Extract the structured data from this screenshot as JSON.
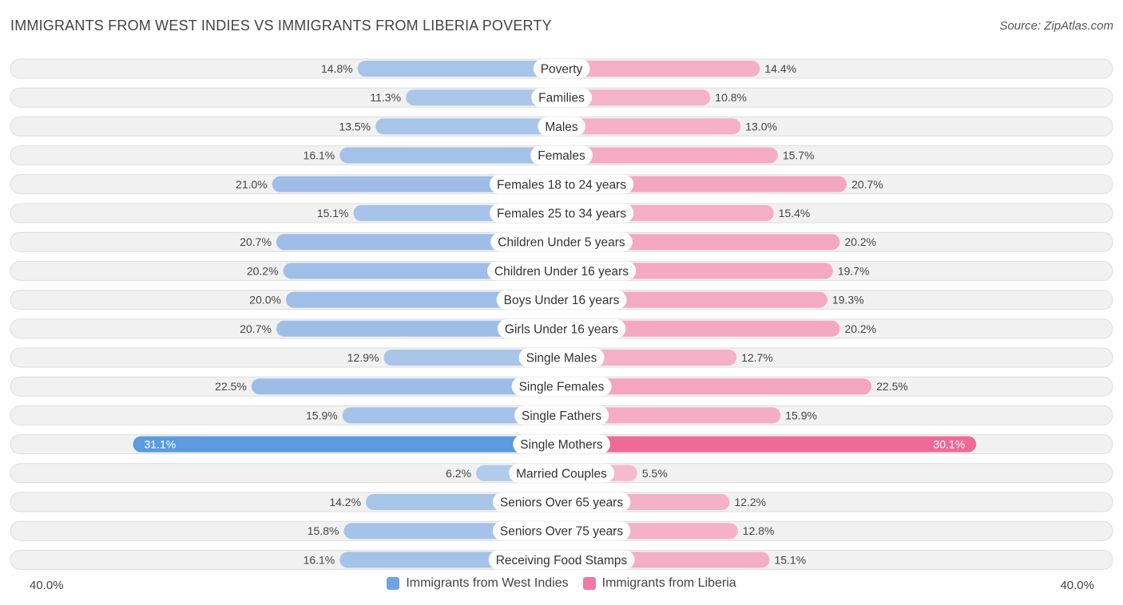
{
  "header": {
    "title": "IMMIGRANTS FROM WEST INDIES VS IMMIGRANTS FROM LIBERIA POVERTY",
    "source": "Source: ZipAtlas.com"
  },
  "colors": {
    "left_bar": "#8fb5e6",
    "left_bar_strong": "#5b9bde",
    "right_bar": "#f59ab8",
    "right_bar_strong": "#f06a98",
    "track": "#f1f1f1",
    "track_border": "#dedede"
  },
  "axis": {
    "left_label": "40.0%",
    "right_label": "40.0%"
  },
  "legend": {
    "left": {
      "label": "Immigrants from West Indies",
      "color": "#6fa4e0"
    },
    "right": {
      "label": "Immigrants from Liberia",
      "color": "#f07aa3"
    }
  },
  "chart_data": {
    "type": "bar",
    "orientation": "horizontal-diverging",
    "title": "IMMIGRANTS FROM WEST INDIES VS IMMIGRANTS FROM LIBERIA POVERTY",
    "xlim": [
      -40,
      40
    ],
    "unit": "%",
    "categories": [
      "Poverty",
      "Families",
      "Males",
      "Females",
      "Females 18 to 24 years",
      "Females 25 to 34 years",
      "Children Under 5 years",
      "Children Under 16 years",
      "Boys Under 16 years",
      "Girls Under 16 years",
      "Single Males",
      "Single Females",
      "Single Fathers",
      "Single Mothers",
      "Married Couples",
      "Seniors Over 65 years",
      "Seniors Over 75 years",
      "Receiving Food Stamps"
    ],
    "series": [
      {
        "name": "Immigrants from West Indies",
        "values": [
          14.8,
          11.3,
          13.5,
          16.1,
          21.0,
          15.1,
          20.7,
          20.2,
          20.0,
          20.7,
          12.9,
          22.5,
          15.9,
          31.1,
          6.2,
          14.2,
          15.8,
          16.1
        ],
        "labels": [
          "14.8%",
          "11.3%",
          "13.5%",
          "16.1%",
          "21.0%",
          "15.1%",
          "20.7%",
          "20.2%",
          "20.0%",
          "20.7%",
          "12.9%",
          "22.5%",
          "15.9%",
          "31.1%",
          "6.2%",
          "14.2%",
          "15.8%",
          "16.1%"
        ]
      },
      {
        "name": "Immigrants from Liberia",
        "values": [
          14.4,
          10.8,
          13.0,
          15.7,
          20.7,
          15.4,
          20.2,
          19.7,
          19.3,
          20.2,
          12.7,
          22.5,
          15.9,
          30.1,
          5.5,
          12.2,
          12.8,
          15.1
        ],
        "labels": [
          "14.4%",
          "10.8%",
          "13.0%",
          "15.7%",
          "20.7%",
          "15.4%",
          "20.2%",
          "19.7%",
          "19.3%",
          "20.2%",
          "12.7%",
          "22.5%",
          "15.9%",
          "30.1%",
          "5.5%",
          "12.2%",
          "12.8%",
          "15.1%"
        ]
      }
    ]
  }
}
